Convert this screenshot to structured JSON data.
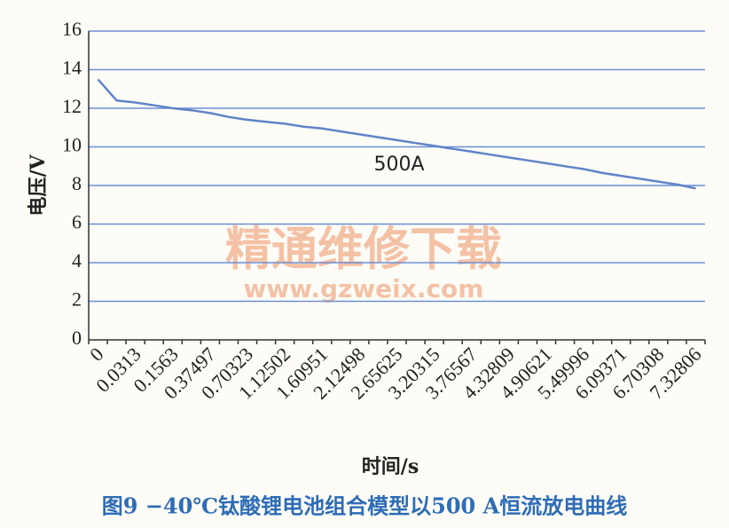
{
  "chart_data": {
    "type": "line",
    "title": "图9  −40℃钛酸锂电池组合模型以500 A恒流放电曲线",
    "x_label": "时间/s",
    "y_label": "电压/V",
    "annotation": "500A",
    "watermark": [
      "精通维修下载",
      "www.gzweix.com"
    ],
    "categories": [
      "0",
      null,
      "0.0313",
      null,
      "0.1563",
      null,
      "0.37497",
      null,
      "0.70323",
      null,
      "1.12502",
      null,
      "1.60951",
      null,
      "2.12498",
      null,
      "2.65625",
      null,
      "3.20315",
      null,
      "3.76567",
      null,
      "4.32809",
      null,
      "4.90621",
      null,
      "5.49996",
      null,
      "6.09371",
      null,
      "6.70308",
      null,
      "7.32806"
    ],
    "values": [
      13.5,
      12.4,
      12.3,
      12.15,
      12.0,
      11.9,
      11.75,
      11.55,
      11.4,
      11.3,
      11.2,
      11.05,
      10.95,
      10.8,
      10.65,
      10.5,
      10.35,
      10.2,
      10.05,
      9.9,
      9.75,
      9.6,
      9.45,
      9.3,
      9.15,
      9.0,
      8.85,
      8.65,
      8.5,
      8.35,
      8.2,
      8.05,
      7.85
    ],
    "color": "#5f84c8",
    "ylim": [
      0,
      16
    ],
    "yticks": [
      0,
      2,
      4,
      6,
      8,
      10,
      12,
      14,
      16
    ],
    "grid": true
  }
}
